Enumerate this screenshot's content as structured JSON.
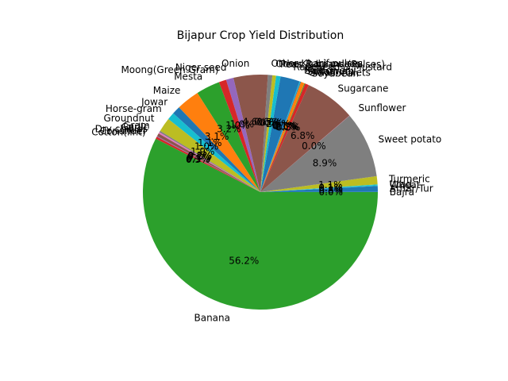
{
  "chart_data": {
    "type": "pie",
    "title": "Bijapur Crop Yield Distribution",
    "start_angle_deg": 0,
    "direction": "counterclockwise",
    "slices": [
      {
        "label": "Bajra",
        "pct": "0.0%",
        "value": 0.02,
        "color": "#1f77b4"
      },
      {
        "label": "Arhar/Tur",
        "pct": "0.8%",
        "value": 0.8,
        "color": "#1f77b4"
      },
      {
        "label": "Wheat",
        "pct": "0.1%",
        "value": 0.1,
        "color": "#17becf"
      },
      {
        "label": "Urad",
        "pct": "0.1%",
        "value": 0.1,
        "color": "#17becf"
      },
      {
        "label": "Turmeric",
        "pct": "1.1%",
        "value": 1.1,
        "color": "#bcbd22"
      },
      {
        "label": "Sweet potato",
        "pct": "8.9%",
        "value": 8.9,
        "color": "#7f7f7f"
      },
      {
        "label": "Sunflower",
        "pct": "0.0%",
        "value": 0.02,
        "color": "#e377c2"
      },
      {
        "label": "Sugarcane",
        "pct": "6.8%",
        "value": 6.8,
        "color": "#8c564b"
      },
      {
        "label": "Soyabean",
        "pct": "0.5%",
        "value": 0.5,
        "color": "#d62728"
      },
      {
        "label": "Small millets",
        "pct": "0.1%",
        "value": 0.1,
        "color": "#2ca02c"
      },
      {
        "label": "Sesamum",
        "pct": "0.5%",
        "value": 0.5,
        "color": "#ff7f0e"
      },
      {
        "label": "Safflower",
        "pct": "0.1%",
        "value": 0.1,
        "color": "#1f77b4"
      },
      {
        "label": "Rice",
        "pct": "0.1%",
        "value": 0.1,
        "color": "#17becf"
      },
      {
        "label": "Rapeseed & Mustard",
        "pct": "2.6%",
        "value": 2.6,
        "color": "#1f77b4"
      },
      {
        "label": "Peas & beans (Pulses)",
        "pct": "0.6%",
        "value": 0.6,
        "color": "#17becf"
      },
      {
        "label": "Other Rabi pulses",
        "pct": "0.5%",
        "value": 0.5,
        "color": "#bcbd22"
      },
      {
        "label": "Other Kharif pulses",
        "pct": "0.6%",
        "value": 0.6,
        "color": "#7f7f7f"
      },
      {
        "label": "Onion",
        "pct": "4.6%",
        "value": 4.6,
        "color": "#8c564b"
      },
      {
        "label": "Niger seed",
        "pct": "1.0%",
        "value": 1.0,
        "color": "#9467bd"
      },
      {
        "label": "Moong(Green Gram)",
        "pct": "1.0%",
        "value": 1.0,
        "color": "#d62728"
      },
      {
        "label": "Mesta",
        "pct": "3.2%",
        "value": 3.2,
        "color": "#2ca02c"
      },
      {
        "label": "Maize",
        "pct": "3.1%",
        "value": 3.1,
        "color": "#ff7f0e"
      },
      {
        "label": "Jowar",
        "pct": "1.1%",
        "value": 1.1,
        "color": "#1f77b4"
      },
      {
        "label": "Horse-gram",
        "pct": "1.0%",
        "value": 1.0,
        "color": "#17becf"
      },
      {
        "label": "Groundnut",
        "pct": "1.9%",
        "value": 1.9,
        "color": "#bcbd22"
      },
      {
        "label": "Gram",
        "pct": "0.2%",
        "value": 0.2,
        "color": "#7f7f7f"
      },
      {
        "label": "Garlic",
        "pct": "0.2%",
        "value": 0.2,
        "color": "#e377c2"
      },
      {
        "label": "Dry chillies",
        "pct": "0.4%",
        "value": 0.4,
        "color": "#8c564b"
      },
      {
        "label": "Coriander",
        "pct": "0.1%",
        "value": 0.1,
        "color": "#9467bd"
      },
      {
        "label": "Cotton(lint)",
        "pct": "0.3%",
        "value": 0.3,
        "color": "#d62728"
      },
      {
        "label": "Banana",
        "pct": "56.2%",
        "value": 56.2,
        "color": "#2ca02c"
      }
    ]
  }
}
